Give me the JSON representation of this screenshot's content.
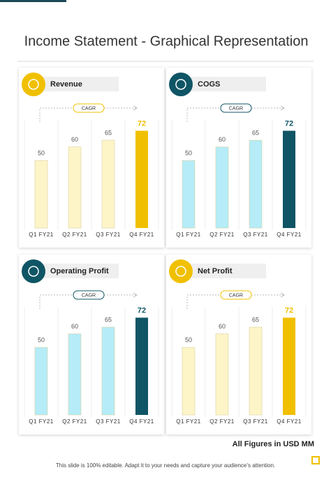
{
  "title": "Income Statement - Graphical Representation",
  "note": "All Figures in USD MM",
  "footer": "This slide is 100% editable. Adapt it to your needs and capture your audience’s attention.",
  "chart_data": [
    {
      "type": "bar",
      "title": "Revenue",
      "annotation": "CAGR",
      "icon_color": "#f0c000",
      "categories": [
        "Q1 FY21",
        "Q2 FY21",
        "Q3 FY21",
        "Q4 FY21"
      ],
      "values": [
        50,
        60,
        65,
        72
      ],
      "colors": [
        "#fdf4c8",
        "#fdf4c8",
        "#fdf4c8",
        "#f0c000"
      ],
      "label_colors": [
        "#555555",
        "#555555",
        "#555555",
        "#f0c000"
      ],
      "ylim": [
        0,
        80
      ]
    },
    {
      "type": "bar",
      "title": "COGS",
      "annotation": "CAGR",
      "icon_color": "#0f5565",
      "categories": [
        "Q1 FY21",
        "Q2 FY21",
        "Q3 FY21",
        "Q4 FY21"
      ],
      "values": [
        50,
        60,
        65,
        72
      ],
      "colors": [
        "#b5ecf8",
        "#b5ecf8",
        "#b5ecf8",
        "#0f5565"
      ],
      "label_colors": [
        "#555555",
        "#555555",
        "#555555",
        "#0f5565"
      ],
      "ylim": [
        0,
        80
      ]
    },
    {
      "type": "bar",
      "title": "Operating Profit",
      "annotation": "CAGR",
      "icon_color": "#0f5565",
      "categories": [
        "Q1 FY21",
        "Q2 FY21",
        "Q3 FY21",
        "Q4 FY21"
      ],
      "values": [
        50,
        60,
        65,
        72
      ],
      "colors": [
        "#b5ecf8",
        "#b5ecf8",
        "#b5ecf8",
        "#0f5565"
      ],
      "label_colors": [
        "#555555",
        "#555555",
        "#555555",
        "#0f5565"
      ],
      "ylim": [
        0,
        80
      ]
    },
    {
      "type": "bar",
      "title": "Net Profit",
      "annotation": "CAGR",
      "icon_color": "#f0c000",
      "categories": [
        "Q1 FY21",
        "Q2 FY21",
        "Q3 FY21",
        "Q4 FY21"
      ],
      "values": [
        50,
        60,
        65,
        72
      ],
      "colors": [
        "#fdf4c8",
        "#fdf4c8",
        "#fdf4c8",
        "#f0c000"
      ],
      "label_colors": [
        "#555555",
        "#555555",
        "#555555",
        "#f0c000"
      ],
      "ylim": [
        0,
        80
      ]
    }
  ]
}
